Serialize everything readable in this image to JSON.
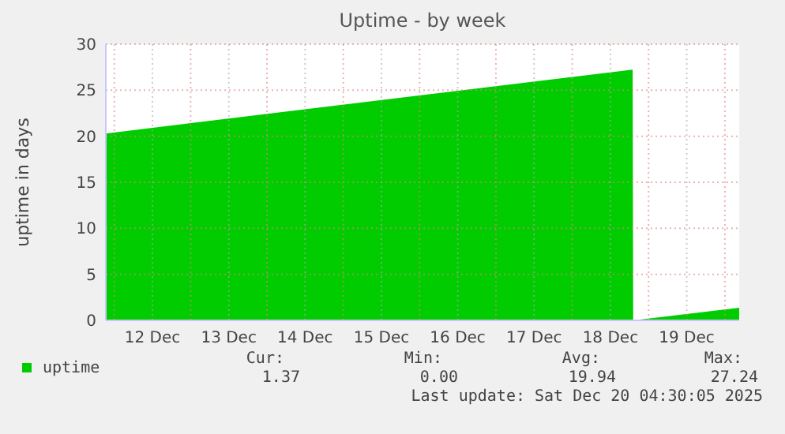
{
  "chart_data": {
    "type": "area",
    "title": "Uptime - by week",
    "ylabel": "uptime in days",
    "series": [
      {
        "name": "uptime",
        "color": "#00cc00",
        "x": [
          "2025-12-11T21:20",
          "2025-12-18T19:00",
          "2025-12-18T19:10",
          "2025-12-20T04:30"
        ],
        "values": [
          20.3,
          27.24,
          0,
          1.37
        ]
      }
    ],
    "xlim": [
      "2025-12-11T21:20",
      "2025-12-20T04:30"
    ],
    "xticks": [
      {
        "value": "2025-12-12T00:00",
        "label": null
      },
      {
        "value": "2025-12-12T12:00",
        "label": "12 Dec"
      },
      {
        "value": "2025-12-13T00:00",
        "label": null
      },
      {
        "value": "2025-12-13T12:00",
        "label": "13 Dec"
      },
      {
        "value": "2025-12-14T00:00",
        "label": null
      },
      {
        "value": "2025-12-14T12:00",
        "label": "14 Dec"
      },
      {
        "value": "2025-12-15T00:00",
        "label": null
      },
      {
        "value": "2025-12-15T12:00",
        "label": "15 Dec"
      },
      {
        "value": "2025-12-16T00:00",
        "label": null
      },
      {
        "value": "2025-12-16T12:00",
        "label": "16 Dec"
      },
      {
        "value": "2025-12-17T00:00",
        "label": null
      },
      {
        "value": "2025-12-17T12:00",
        "label": "17 Dec"
      },
      {
        "value": "2025-12-18T00:00",
        "label": null
      },
      {
        "value": "2025-12-18T12:00",
        "label": "18 Dec"
      },
      {
        "value": "2025-12-19T00:00",
        "label": null
      },
      {
        "value": "2025-12-19T12:00",
        "label": "19 Dec"
      },
      {
        "value": "2025-12-20T00:00",
        "label": null
      }
    ],
    "ylim": [
      0,
      30
    ],
    "yticks": [
      0,
      5,
      10,
      15,
      20,
      25,
      30
    ],
    "grid": true,
    "legend": "bottom left",
    "annotations": [
      "Cur:",
      "1.37",
      "Min:",
      "0.00",
      "Avg:",
      "19.94",
      "Max:",
      "27.24",
      "Last update: Sat Dec 20 04:30:05 2025"
    ]
  }
}
